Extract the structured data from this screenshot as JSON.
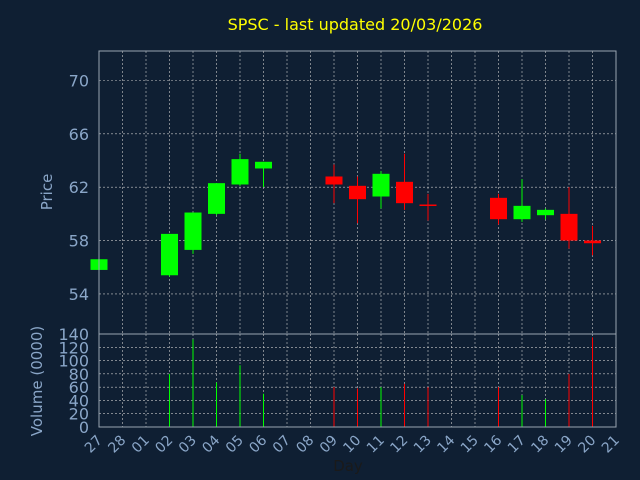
{
  "colors": {
    "background": "#0f1f33",
    "title": "#ffff00",
    "axis_text": "#8aa6c8",
    "grid": "#c8c8c8",
    "frame": "#9aa6b2",
    "up": "#00ff00",
    "down": "#ff0000"
  },
  "chart_data": {
    "type": "candlestick",
    "title": "SPSC - last updated 20/03/2026",
    "xlabel": "Day",
    "price_panel": {
      "ylabel": "Price",
      "ylim": [
        51,
        72.2
      ],
      "yticks": [
        54,
        58,
        62,
        66,
        70
      ],
      "grid": true
    },
    "volume_panel": {
      "ylabel": "Volume (0000)",
      "ylim": [
        0,
        140
      ],
      "yticks": [
        0,
        20,
        40,
        60,
        80,
        100,
        120,
        140
      ],
      "grid": true
    },
    "x_tick_labels": [
      "27",
      "28",
      "01",
      "02",
      "03",
      "04",
      "05",
      "06",
      "07",
      "08",
      "09",
      "10",
      "11",
      "12",
      "13",
      "14",
      "15",
      "16",
      "17",
      "18",
      "19",
      "20",
      "21"
    ],
    "candles": [
      {
        "x": "27",
        "open": 55.8,
        "high": 56.7,
        "low": 55.6,
        "close": 56.6,
        "volume": 0
      },
      {
        "x": "02",
        "open": 55.4,
        "high": 58.5,
        "low": 55.3,
        "close": 58.5,
        "volume": 80
      },
      {
        "x": "03",
        "open": 57.3,
        "high": 60.1,
        "low": 57.0,
        "close": 60.1,
        "volume": 132
      },
      {
        "x": "04",
        "open": 60.0,
        "high": 62.3,
        "low": 59.9,
        "close": 62.3,
        "volume": 67
      },
      {
        "x": "05",
        "open": 62.2,
        "high": 64.5,
        "low": 62.1,
        "close": 64.1,
        "volume": 93
      },
      {
        "x": "06",
        "open": 63.4,
        "high": 63.9,
        "low": 62.0,
        "close": 63.9,
        "volume": 50
      },
      {
        "x": "09",
        "open": 62.8,
        "high": 63.7,
        "low": 60.8,
        "close": 62.2,
        "volume": 60
      },
      {
        "x": "10",
        "open": 62.1,
        "high": 62.8,
        "low": 59.3,
        "close": 61.1,
        "volume": 58
      },
      {
        "x": "11",
        "open": 61.3,
        "high": 63.2,
        "low": 60.4,
        "close": 63.0,
        "volume": 60
      },
      {
        "x": "12",
        "open": 62.4,
        "high": 64.5,
        "low": 60.3,
        "close": 60.8,
        "volume": 65
      },
      {
        "x": "13",
        "open": 60.7,
        "high": 61.5,
        "low": 59.5,
        "close": 60.6,
        "volume": 60
      },
      {
        "x": "16",
        "open": 61.2,
        "high": 61.5,
        "low": 59.2,
        "close": 59.6,
        "volume": 60
      },
      {
        "x": "17",
        "open": 59.6,
        "high": 62.6,
        "low": 59.4,
        "close": 60.6,
        "volume": 48
      },
      {
        "x": "18",
        "open": 59.9,
        "high": 60.4,
        "low": 59.6,
        "close": 60.3,
        "volume": 42
      },
      {
        "x": "19",
        "open": 60.0,
        "high": 62.0,
        "low": 57.4,
        "close": 58.0,
        "volume": 80
      },
      {
        "x": "20",
        "open": 58.0,
        "high": 59.1,
        "low": 56.9,
        "close": 57.8,
        "volume": 135
      }
    ]
  }
}
